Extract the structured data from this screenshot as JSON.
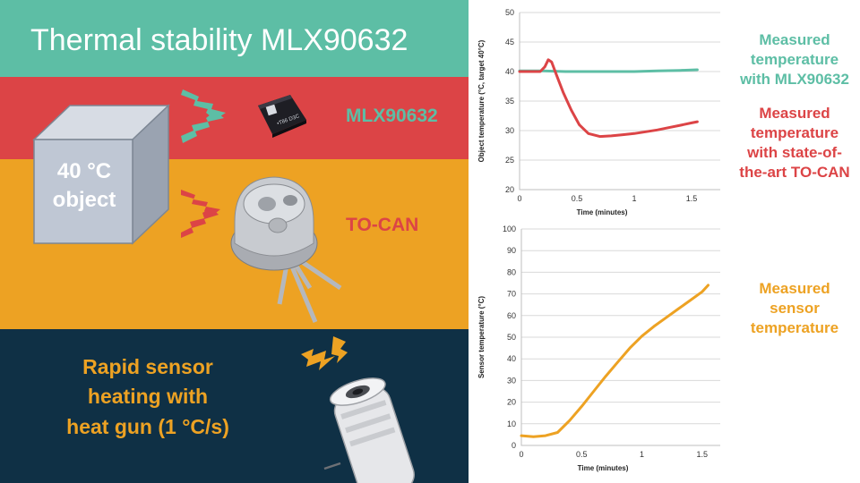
{
  "title": "Thermal stability MLX90632",
  "labels": {
    "mlx": "MLX90632",
    "tocan": "TO-CAN",
    "object_line1": "40 °C",
    "object_line2": "object",
    "heat_line1": "Rapid sensor",
    "heat_line2": "heating with",
    "heat_line3": "heat gun (1 °C/s)",
    "chip_marking": "•T86 D3C"
  },
  "side_labels": {
    "mlx_line1": "Measured",
    "mlx_line2": "temperature",
    "mlx_line3": "with MLX90632",
    "tocan_line1": "Measured",
    "tocan_line2": "temperature",
    "tocan_line3": "with state-of-",
    "tocan_line4": "the-art TO-CAN",
    "sensor_line1": "Measured",
    "sensor_line2": "sensor",
    "sensor_line3": "temperature"
  },
  "colors": {
    "teal": "#5dbea5",
    "red": "#dc4446",
    "orange": "#eda223",
    "navy": "#0f3045"
  },
  "icons": [
    "heat-wave-arrows-icon",
    "lightning-icon",
    "chip-icon",
    "to-can-sensor-icon",
    "heat-gun-icon",
    "cube-icon"
  ],
  "chart_data": [
    {
      "type": "line",
      "title": "",
      "xlabel": "Time (minutes)",
      "ylabel": "Object temperature (°C, target 40°C)",
      "xlim": [
        0,
        1.75
      ],
      "ylim": [
        20,
        50
      ],
      "xticks": [
        "0",
        "0.5",
        "1",
        "1.5"
      ],
      "xtick_values": [
        0,
        0.5,
        1,
        1.5
      ],
      "yticks": [
        "20",
        "25",
        "30",
        "35",
        "40",
        "45",
        "50"
      ],
      "ytick_values": [
        20,
        25,
        30,
        35,
        40,
        45,
        50
      ],
      "grid": "horizontal",
      "series": [
        {
          "color": "#5dbea5",
          "x": [
            0,
            0.2,
            0.4,
            0.6,
            0.8,
            1.0,
            1.2,
            1.4,
            1.55
          ],
          "y": [
            40.1,
            40.1,
            40.0,
            40.0,
            40.0,
            40.0,
            40.1,
            40.2,
            40.3
          ]
        },
        {
          "color": "#dc4446",
          "x": [
            0,
            0.18,
            0.22,
            0.25,
            0.28,
            0.32,
            0.38,
            0.45,
            0.52,
            0.6,
            0.7,
            0.8,
            0.9,
            1.0,
            1.1,
            1.2,
            1.3,
            1.4,
            1.5,
            1.55
          ],
          "y": [
            40.0,
            40.0,
            40.8,
            42.0,
            41.6,
            39.5,
            36.5,
            33.5,
            31.0,
            29.5,
            29.0,
            29.1,
            29.3,
            29.5,
            29.8,
            30.1,
            30.5,
            30.9,
            31.3,
            31.5
          ]
        }
      ]
    },
    {
      "type": "line",
      "title": "",
      "xlabel": "Time (minutes)",
      "ylabel": "Sensor temperature (°C)",
      "xlim": [
        0,
        1.65
      ],
      "ylim": [
        0,
        100
      ],
      "xticks": [
        "0",
        "0.5",
        "1",
        "1.5"
      ],
      "xtick_values": [
        0,
        0.5,
        1,
        1.5
      ],
      "yticks": [
        "0",
        "10",
        "20",
        "30",
        "40",
        "50",
        "60",
        "70",
        "80",
        "90",
        "100"
      ],
      "ytick_values": [
        0,
        10,
        20,
        30,
        40,
        50,
        60,
        70,
        80,
        90,
        100
      ],
      "grid": "horizontal",
      "series": [
        {
          "color": "#eda223",
          "x": [
            0,
            0.1,
            0.2,
            0.3,
            0.4,
            0.5,
            0.6,
            0.7,
            0.8,
            0.9,
            1.0,
            1.1,
            1.2,
            1.3,
            1.4,
            1.5,
            1.55
          ],
          "y": [
            4.5,
            4.0,
            4.5,
            6.0,
            11.5,
            18.0,
            25.0,
            32.0,
            38.5,
            45.0,
            50.5,
            55.0,
            59.0,
            63.0,
            67.0,
            71.0,
            74.0
          ]
        }
      ]
    }
  ]
}
